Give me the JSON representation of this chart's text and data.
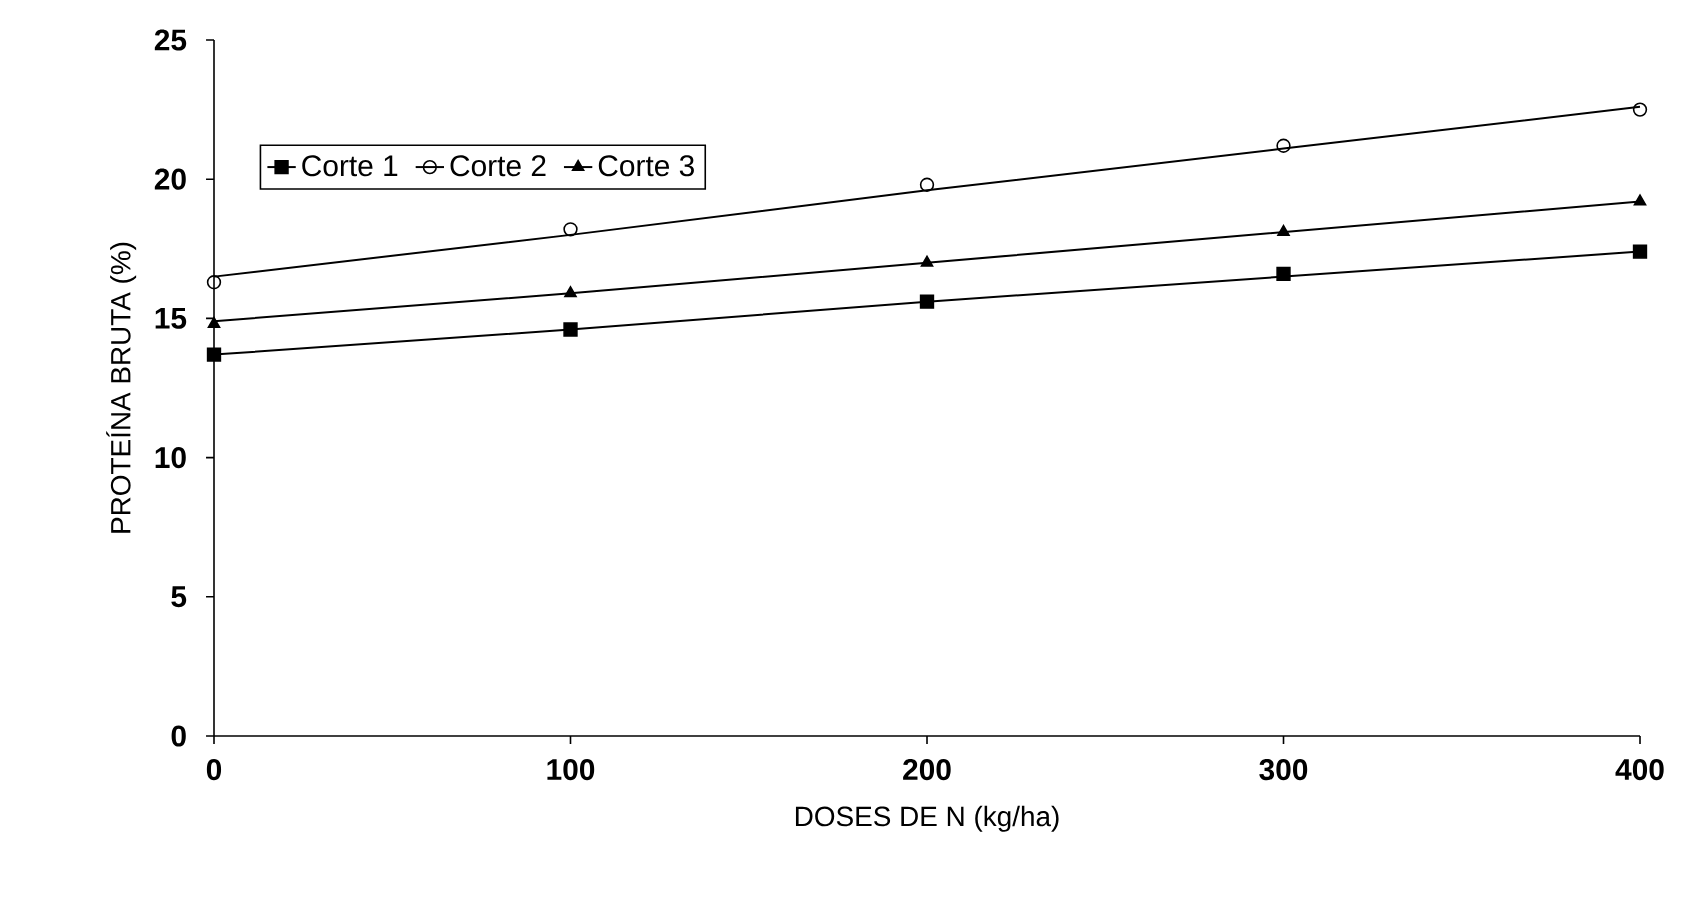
{
  "chart_data": {
    "type": "scatter",
    "xlabel": "DOSES DE N (kg/ha)",
    "ylabel": "PROTEÍNA BRUTA (%)",
    "x": [
      0,
      100,
      200,
      300,
      400
    ],
    "xlim": [
      0,
      400
    ],
    "xticks": [
      0,
      100,
      200,
      300,
      400
    ],
    "ylim": [
      0,
      25
    ],
    "yticks": [
      0,
      5,
      10,
      15,
      20,
      25
    ],
    "legend": "top left",
    "grid": false,
    "series": [
      {
        "name": "Corte 1",
        "color": "#000000",
        "marker": "square",
        "values": [
          13.7,
          14.6,
          15.6,
          16.6,
          17.4
        ]
      },
      {
        "name": "Corte 2",
        "color": "#000000",
        "marker": "circle",
        "values": [
          16.3,
          18.2,
          19.8,
          21.2,
          22.5
        ]
      },
      {
        "name": "Corte 3",
        "color": "#000000",
        "marker": "triangle",
        "values": [
          14.8,
          15.9,
          17.0,
          18.1,
          19.2
        ]
      },
      {
        "type": "line",
        "color": "#000000",
        "marker": "none",
        "values": [
          13.7,
          14.6,
          15.6,
          16.5,
          17.4
        ]
      },
      {
        "type": "line",
        "color": "#000000",
        "marker": "none",
        "values": [
          16.5,
          18.0,
          19.6,
          21.1,
          22.6
        ]
      },
      {
        "type": "line",
        "color": "#000000",
        "marker": "none",
        "values": [
          14.9,
          15.9,
          17.0,
          18.1,
          19.2
        ]
      }
    ]
  }
}
